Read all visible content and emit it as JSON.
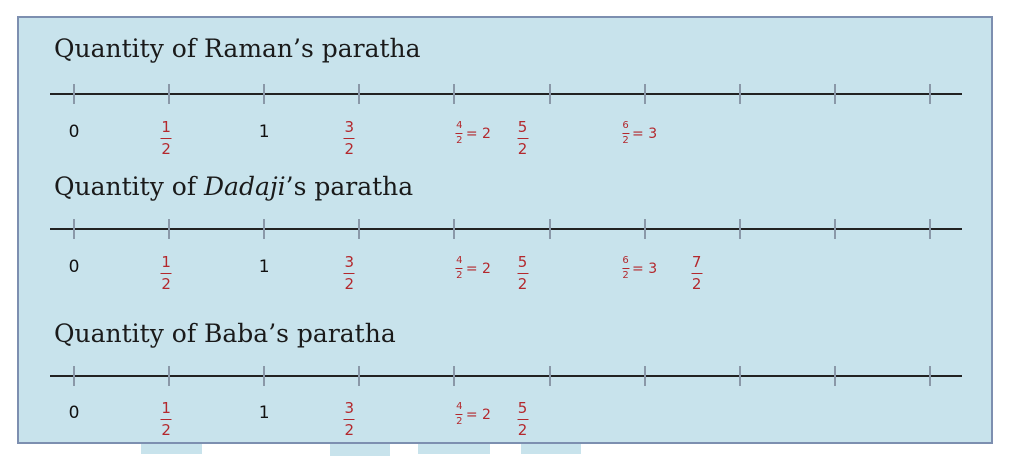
{
  "colors": {
    "panel": "#c8e3ec",
    "border": "#7d8fb0",
    "fraction_red": "#b3282d",
    "axis": "#222222"
  },
  "number_lines": [
    {
      "title_parts": [
        "Quantity of Raman’s paratha"
      ],
      "ticks": 10,
      "labels": [
        {
          "kind": "int",
          "text": "0"
        },
        {
          "kind": "frac",
          "num": "1",
          "den": "2"
        },
        {
          "kind": "int",
          "text": "1"
        },
        {
          "kind": "frac",
          "num": "3",
          "den": "2"
        },
        {
          "kind": "eq",
          "num": "4",
          "den": "2",
          "rhs": "= 2"
        },
        {
          "kind": "frac",
          "num": "5",
          "den": "2"
        },
        {
          "kind": "eq",
          "num": "6",
          "den": "2",
          "rhs": "= 3"
        }
      ]
    },
    {
      "title_parts": [
        "Quantity of ",
        "Dadaji",
        "’s paratha"
      ],
      "ticks": 10,
      "labels": [
        {
          "kind": "int",
          "text": "0"
        },
        {
          "kind": "frac",
          "num": "1",
          "den": "2"
        },
        {
          "kind": "int",
          "text": "1"
        },
        {
          "kind": "frac",
          "num": "3",
          "den": "2"
        },
        {
          "kind": "eq",
          "num": "4",
          "den": "2",
          "rhs": "= 2"
        },
        {
          "kind": "frac",
          "num": "5",
          "den": "2"
        },
        {
          "kind": "eq",
          "num": "6",
          "den": "2",
          "rhs": "= 3"
        },
        {
          "kind": "frac",
          "num": "7",
          "den": "2"
        }
      ]
    },
    {
      "title_parts": [
        "Quantity of Baba’s paratha"
      ],
      "ticks": 10,
      "labels": [
        {
          "kind": "int",
          "text": "0"
        },
        {
          "kind": "frac",
          "num": "1",
          "den": "2"
        },
        {
          "kind": "int",
          "text": "1"
        },
        {
          "kind": "frac",
          "num": "3",
          "den": "2"
        },
        {
          "kind": "eq",
          "num": "4",
          "den": "2",
          "rhs": "= 2"
        },
        {
          "kind": "frac",
          "num": "5",
          "den": "2"
        }
      ]
    }
  ]
}
